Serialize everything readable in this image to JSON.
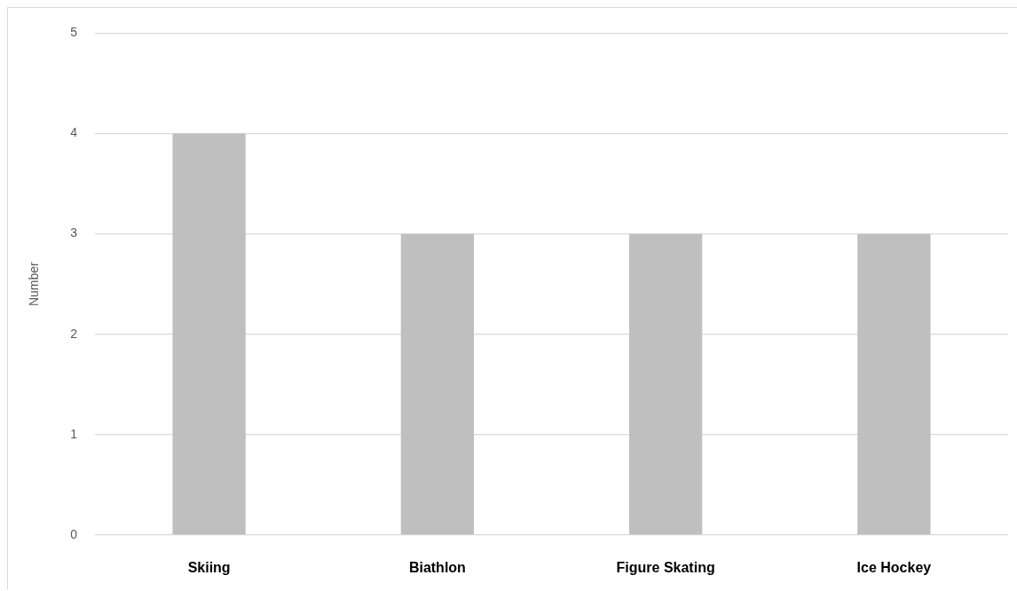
{
  "chart_data": {
    "type": "bar",
    "ylabel": "Number",
    "categories": [
      "Skiing",
      "Biathlon",
      "Figure Skating",
      "Ice Hockey"
    ],
    "values": [
      4,
      3,
      3,
      3
    ],
    "color": "#bfbfbf",
    "ylim": [
      0,
      5
    ],
    "yticks": [
      0,
      1,
      2,
      3,
      4,
      5
    ],
    "grid": "y",
    "legend": false
  }
}
